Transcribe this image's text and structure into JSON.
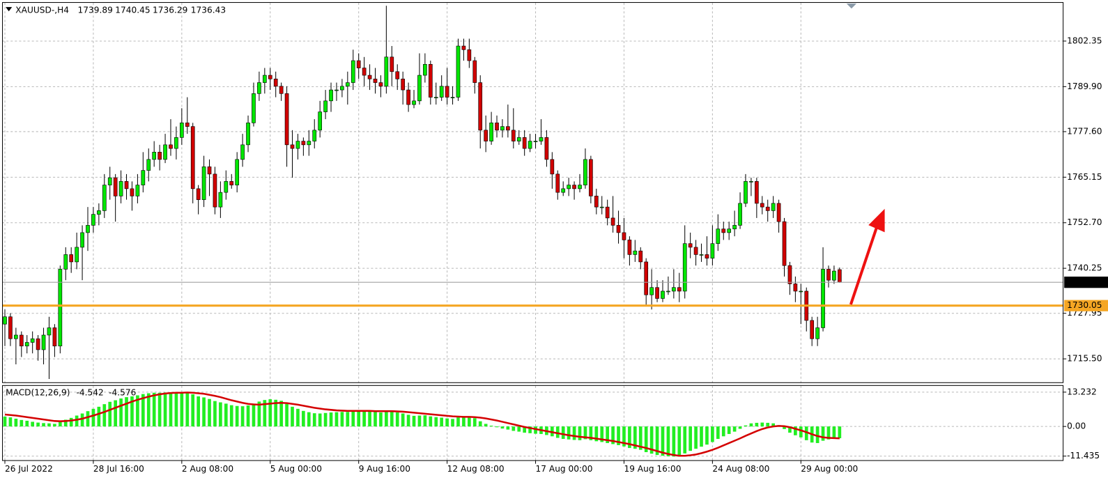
{
  "chart_data": [
    {
      "type": "candlestick",
      "title": "XAUUSD-,H4",
      "up_color": "#00e600",
      "down_color": "#d00000",
      "wick_color": "#000000",
      "xlim": [
        -0.5,
        191.5
      ],
      "xticks": [
        {
          "value": 0,
          "label": "26 Jul 2022"
        },
        {
          "value": 16,
          "label": "28 Jul 16:00"
        },
        {
          "value": 32,
          "label": "2 Aug 08:00"
        },
        {
          "value": 48,
          "label": "5 Aug 00:00"
        },
        {
          "value": 64,
          "label": "9 Aug 16:00"
        },
        {
          "value": 80,
          "label": "12 Aug 08:00"
        },
        {
          "value": 96,
          "label": "17 Aug 00:00"
        },
        {
          "value": 112,
          "label": "19 Aug 16:00"
        },
        {
          "value": 128,
          "label": "24 Aug 08:00"
        },
        {
          "value": 144,
          "label": "29 Aug 00:00"
        }
      ],
      "ylim": [
        1708.9,
        1812.8
      ],
      "yticks": [
        1802.35,
        {
          "value": 1789.9,
          "label": "1789.90"
        },
        {
          "value": 1777.6,
          "label": "1777.60"
        },
        1765.15,
        {
          "value": 1752.7,
          "label": "1752.70"
        },
        1740.25,
        1727.95,
        {
          "value": 1715.5,
          "label": "1715.50"
        }
      ],
      "grid": true,
      "hlines": [
        {
          "value": 1730.05,
          "color": "#f5a623"
        }
      ],
      "ohlc": [
        [
          1725,
          1729,
          1719,
          1727
        ],
        [
          1727,
          1728,
          1719,
          1721
        ],
        [
          1721,
          1724,
          1714,
          1722
        ],
        [
          1722,
          1723,
          1716,
          1719
        ],
        [
          1719,
          1722,
          1717,
          1720
        ],
        [
          1720,
          1723,
          1717,
          1721
        ],
        [
          1721,
          1722,
          1715,
          1718
        ],
        [
          1718,
          1724,
          1714,
          1722
        ],
        [
          1722,
          1727,
          1710,
          1724
        ],
        [
          1724,
          1725,
          1716,
          1719
        ],
        [
          1719,
          1741,
          1717,
          1740
        ],
        [
          1740,
          1746,
          1737,
          1744
        ],
        [
          1744,
          1746,
          1739,
          1742
        ],
        [
          1742,
          1750,
          1740,
          1746
        ],
        [
          1746,
          1752,
          1737,
          1750
        ],
        [
          1750,
          1757,
          1745,
          1752
        ],
        [
          1752,
          1757,
          1750,
          1755
        ],
        [
          1755,
          1758,
          1752,
          1756
        ],
        [
          1756,
          1766,
          1754,
          1763
        ],
        [
          1763,
          1768,
          1759,
          1765
        ],
        [
          1765,
          1766,
          1753,
          1760
        ],
        [
          1760,
          1767,
          1758,
          1764
        ],
        [
          1764,
          1766,
          1759,
          1762
        ],
        [
          1762,
          1764,
          1756,
          1760
        ],
        [
          1760,
          1766,
          1758,
          1763
        ],
        [
          1763,
          1772,
          1761,
          1767
        ],
        [
          1767,
          1773,
          1764,
          1770
        ],
        [
          1770,
          1775,
          1768,
          1772
        ],
        [
          1772,
          1774,
          1767,
          1770
        ],
        [
          1770,
          1777,
          1769,
          1774
        ],
        [
          1774,
          1781,
          1771,
          1773
        ],
        [
          1773,
          1779,
          1770,
          1776
        ],
        [
          1776,
          1784,
          1774,
          1780
        ],
        [
          1780,
          1787,
          1777,
          1779
        ],
        [
          1779,
          1780,
          1758,
          1762
        ],
        [
          1762,
          1763,
          1755,
          1759
        ],
        [
          1759,
          1771,
          1757,
          1768
        ],
        [
          1768,
          1770,
          1760,
          1766
        ],
        [
          1766,
          1768,
          1755,
          1757
        ],
        [
          1757,
          1764,
          1754,
          1761
        ],
        [
          1761,
          1767,
          1759,
          1764
        ],
        [
          1764,
          1766,
          1762,
          1763
        ],
        [
          1763,
          1772,
          1761,
          1770
        ],
        [
          1770,
          1777,
          1768,
          1774
        ],
        [
          1774,
          1782,
          1772,
          1780
        ],
        [
          1780,
          1791,
          1779,
          1788
        ],
        [
          1788,
          1794,
          1786,
          1791
        ],
        [
          1791,
          1795,
          1788,
          1793
        ],
        [
          1793,
          1795,
          1789,
          1792
        ],
        [
          1792,
          1794,
          1787,
          1790
        ],
        [
          1790,
          1791,
          1786,
          1788
        ],
        [
          1788,
          1790,
          1768,
          1774
        ],
        [
          1774,
          1778,
          1765,
          1773
        ],
        [
          1773,
          1777,
          1770,
          1775
        ],
        [
          1775,
          1776,
          1771,
          1774
        ],
        [
          1774,
          1778,
          1771,
          1775
        ],
        [
          1775,
          1781,
          1773,
          1778
        ],
        [
          1778,
          1786,
          1776,
          1783
        ],
        [
          1783,
          1789,
          1781,
          1786
        ],
        [
          1786,
          1791,
          1783,
          1789
        ],
        [
          1789,
          1791,
          1786,
          1789
        ],
        [
          1789,
          1792,
          1787,
          1790
        ],
        [
          1790,
          1794,
          1785,
          1791
        ],
        [
          1791,
          1800,
          1789,
          1797
        ],
        [
          1797,
          1799,
          1792,
          1795
        ],
        [
          1795,
          1798,
          1790,
          1793
        ],
        [
          1793,
          1796,
          1789,
          1792
        ],
        [
          1792,
          1795,
          1788,
          1791
        ],
        [
          1791,
          1793,
          1787,
          1790
        ],
        [
          1790,
          1812,
          1788,
          1798
        ],
        [
          1798,
          1801,
          1790,
          1794
        ],
        [
          1794,
          1796,
          1789,
          1792
        ],
        [
          1792,
          1794,
          1785,
          1789
        ],
        [
          1789,
          1791,
          1783,
          1785
        ],
        [
          1785,
          1789,
          1784,
          1786
        ],
        [
          1786,
          1799,
          1785,
          1793
        ],
        [
          1793,
          1799,
          1791,
          1796
        ],
        [
          1796,
          1797,
          1785,
          1787
        ],
        [
          1787,
          1791,
          1785,
          1787
        ],
        [
          1787,
          1793,
          1786,
          1790
        ],
        [
          1790,
          1795,
          1785,
          1787
        ],
        [
          1787,
          1790,
          1785,
          1787
        ],
        [
          1787,
          1803,
          1786,
          1801
        ],
        [
          1801,
          1803,
          1797,
          1800
        ],
        [
          1800,
          1803,
          1795,
          1797
        ],
        [
          1797,
          1798,
          1788,
          1791
        ],
        [
          1791,
          1793,
          1773,
          1778
        ],
        [
          1778,
          1782,
          1772,
          1775
        ],
        [
          1775,
          1783,
          1774,
          1780
        ],
        [
          1780,
          1782,
          1776,
          1778
        ],
        [
          1778,
          1781,
          1776,
          1779
        ],
        [
          1779,
          1785,
          1776,
          1778
        ],
        [
          1778,
          1784,
          1773,
          1775
        ],
        [
          1775,
          1778,
          1774,
          1776
        ],
        [
          1776,
          1778,
          1771,
          1773
        ],
        [
          1773,
          1777,
          1772,
          1775
        ],
        [
          1775,
          1777,
          1773,
          1775
        ],
        [
          1775,
          1781,
          1774,
          1776
        ],
        [
          1776,
          1778,
          1768,
          1770
        ],
        [
          1770,
          1772,
          1762,
          1766
        ],
        [
          1766,
          1767,
          1759,
          1761
        ],
        [
          1761,
          1764,
          1760,
          1762
        ],
        [
          1762,
          1765,
          1760,
          1763
        ],
        [
          1763,
          1764,
          1759,
          1762
        ],
        [
          1762,
          1766,
          1761,
          1763
        ],
        [
          1763,
          1773,
          1762,
          1770
        ],
        [
          1770,
          1771,
          1758,
          1760
        ],
        [
          1760,
          1762,
          1755,
          1757
        ],
        [
          1757,
          1760,
          1755,
          1757
        ],
        [
          1757,
          1759,
          1752,
          1754
        ],
        [
          1754,
          1760,
          1750,
          1752
        ],
        [
          1752,
          1756,
          1747,
          1750
        ],
        [
          1750,
          1754,
          1743,
          1748
        ],
        [
          1748,
          1749,
          1741,
          1744
        ],
        [
          1744,
          1748,
          1742,
          1745
        ],
        [
          1745,
          1746,
          1740,
          1742
        ],
        [
          1742,
          1743,
          1730,
          1733
        ],
        [
          1733,
          1740,
          1729,
          1735
        ],
        [
          1735,
          1737,
          1731,
          1732
        ],
        [
          1732,
          1737,
          1731,
          1734
        ],
        [
          1734,
          1738,
          1733,
          1734
        ],
        [
          1734,
          1740,
          1732,
          1735
        ],
        [
          1735,
          1739,
          1731,
          1734
        ],
        [
          1734,
          1752,
          1732,
          1747
        ],
        [
          1747,
          1750,
          1743,
          1746
        ],
        [
          1746,
          1748,
          1741,
          1744
        ],
        [
          1744,
          1747,
          1742,
          1744
        ],
        [
          1744,
          1749,
          1741,
          1743
        ],
        [
          1743,
          1752,
          1741,
          1747
        ],
        [
          1747,
          1755,
          1745,
          1751
        ],
        [
          1751,
          1753,
          1748,
          1750
        ],
        [
          1750,
          1753,
          1748,
          1751
        ],
        [
          1751,
          1756,
          1749,
          1752
        ],
        [
          1752,
          1761,
          1751,
          1758
        ],
        [
          1758,
          1766,
          1757,
          1764
        ],
        [
          1764,
          1765,
          1760,
          1764
        ],
        [
          1764,
          1765,
          1754,
          1758
        ],
        [
          1758,
          1760,
          1755,
          1757
        ],
        [
          1757,
          1759,
          1753,
          1756
        ],
        [
          1756,
          1760,
          1754,
          1758
        ],
        [
          1758,
          1759,
          1750,
          1753
        ],
        [
          1753,
          1754,
          1738,
          1741
        ],
        [
          1741,
          1742,
          1733,
          1736
        ],
        [
          1736,
          1738,
          1731,
          1734
        ],
        [
          1734,
          1736,
          1725,
          1734
        ],
        [
          1734,
          1735,
          1723,
          1726
        ],
        [
          1726,
          1727,
          1719,
          1721
        ],
        [
          1721,
          1727,
          1719,
          1724
        ],
        [
          1724,
          1746,
          1723,
          1740
        ],
        [
          1740,
          1741,
          1735,
          1737
        ],
        [
          1737,
          1741,
          1736,
          1739.5
        ],
        [
          1739.89,
          1740.45,
          1736.29,
          1736.43
        ]
      ]
    },
    {
      "type": "macd",
      "title": "MACD(12,26,9)",
      "ylim": [
        -13.0,
        15.66
      ],
      "yticks": [
        13.232,
        {
          "value": 0,
          "label": "0.00"
        },
        -11.435
      ],
      "histogram": {
        "color": "#22ee22",
        "values": [
          3.8,
          3.5,
          3.0,
          2.5,
          2.2,
          1.8,
          1.5,
          1.3,
          1.2,
          1.0,
          1.8,
          2.6,
          3.3,
          4.2,
          5.0,
          5.9,
          6.8,
          7.6,
          8.6,
          9.5,
          10.1,
          10.8,
          11.3,
          11.6,
          12.0,
          12.5,
          12.8,
          13.0,
          13.0,
          13.1,
          13.1,
          13.0,
          13.2,
          13.2,
          12.4,
          11.6,
          11.2,
          10.6,
          9.8,
          9.3,
          8.8,
          8.2,
          7.9,
          7.8,
          8.1,
          8.8,
          9.6,
          10.2,
          10.5,
          10.3,
          9.9,
          8.7,
          7.6,
          6.8,
          6.0,
          5.5,
          5.1,
          5.0,
          5.2,
          5.4,
          5.5,
          5.6,
          5.6,
          5.9,
          6.0,
          5.9,
          5.8,
          5.6,
          5.4,
          5.8,
          5.7,
          5.4,
          5.0,
          4.5,
          4.1,
          4.2,
          4.3,
          3.9,
          3.6,
          3.4,
          3.1,
          2.9,
          3.5,
          3.8,
          3.7,
          3.2,
          2.0,
          1.0,
          0.3,
          -0.3,
          -0.8,
          -1.2,
          -1.7,
          -2.0,
          -2.4,
          -2.6,
          -2.8,
          -2.9,
          -3.3,
          -3.8,
          -4.4,
          -4.8,
          -5.0,
          -5.2,
          -5.3,
          -4.9,
          -5.3,
          -5.7,
          -6.0,
          -6.4,
          -6.8,
          -7.2,
          -7.7,
          -8.3,
          -8.6,
          -9.0,
          -9.9,
          -10.5,
          -11.0,
          -11.3,
          -11.5,
          -11.6,
          -11.6,
          -10.4,
          -9.4,
          -8.6,
          -7.8,
          -7.0,
          -6.0,
          -4.8,
          -3.8,
          -2.9,
          -2.0,
          -0.9,
          0.4,
          1.2,
          1.4,
          1.5,
          1.4,
          1.2,
          0.5,
          -1.0,
          -2.4,
          -3.4,
          -4.2,
          -5.3,
          -6.2,
          -6.4,
          -5.5,
          -5.0,
          -4.8,
          -4.542
        ]
      },
      "signal": {
        "color": "#d40000",
        "values": [
          4.6,
          4.4,
          4.2,
          3.9,
          3.6,
          3.3,
          3.0,
          2.7,
          2.4,
          2.1,
          2.0,
          2.1,
          2.3,
          2.6,
          3.0,
          3.6,
          4.2,
          4.9,
          5.6,
          6.4,
          7.2,
          8.0,
          8.8,
          9.6,
          10.3,
          10.9,
          11.5,
          12.0,
          12.4,
          12.7,
          12.9,
          13.0,
          13.0,
          13.1,
          13.0,
          12.8,
          12.6,
          12.2,
          11.8,
          11.3,
          10.7,
          10.1,
          9.6,
          9.1,
          8.7,
          8.5,
          8.4,
          8.6,
          8.8,
          9.0,
          9.1,
          9.0,
          8.7,
          8.4,
          8.0,
          7.6,
          7.2,
          6.9,
          6.6,
          6.4,
          6.2,
          6.1,
          6.0,
          6.0,
          6.0,
          6.0,
          6.0,
          5.9,
          5.9,
          5.9,
          5.9,
          5.8,
          5.7,
          5.5,
          5.3,
          5.1,
          4.9,
          4.7,
          4.5,
          4.3,
          4.1,
          3.9,
          3.8,
          3.7,
          3.7,
          3.6,
          3.4,
          3.1,
          2.7,
          2.3,
          1.8,
          1.3,
          0.8,
          0.3,
          -0.2,
          -0.6,
          -1.0,
          -1.4,
          -1.8,
          -2.2,
          -2.6,
          -3.0,
          -3.4,
          -3.7,
          -4.0,
          -4.2,
          -4.4,
          -4.7,
          -5.0,
          -5.3,
          -5.6,
          -6.0,
          -6.4,
          -6.8,
          -7.3,
          -7.8,
          -8.3,
          -8.9,
          -9.5,
          -10.1,
          -10.6,
          -11.0,
          -11.3,
          -11.3,
          -11.1,
          -10.8,
          -10.3,
          -9.7,
          -9.0,
          -8.2,
          -7.3,
          -6.4,
          -5.5,
          -4.6,
          -3.6,
          -2.7,
          -1.8,
          -1.0,
          -0.4,
          0.0,
          0.2,
          0.1,
          -0.3,
          -0.9,
          -1.5,
          -2.2,
          -3.0,
          -3.7,
          -4.2,
          -4.4,
          -4.5,
          -4.576
        ]
      }
    }
  ]
}
